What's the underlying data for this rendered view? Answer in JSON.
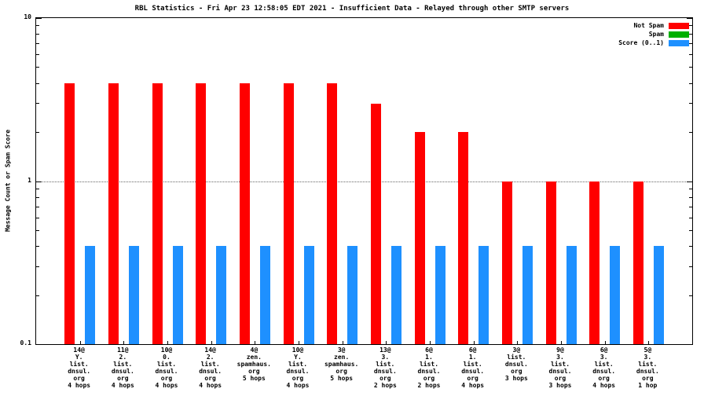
{
  "title": "RBL Statistics - Fri Apr 23 12:58:05 EDT 2021 - Insufficient Data - Relayed through other SMTP servers",
  "ylabel": "Message Count or Spam Score",
  "legend": [
    {
      "label": "Not Spam",
      "color": "#ff0000"
    },
    {
      "label": "Spam",
      "color": "#00b000"
    },
    {
      "label": "Score (0..1)",
      "color": "#1e90ff"
    }
  ],
  "chart_data": {
    "type": "bar",
    "scale": "log",
    "title": "RBL Statistics - Fri Apr 23 12:58:05 EDT 2021 - Insufficient Data - Relayed through other SMTP servers",
    "xlabel": "",
    "ylabel": "Message Count or Spam Score",
    "ylim": [
      0.1,
      10
    ],
    "yticks": [
      0.1,
      1,
      10
    ],
    "grid_y": [
      1
    ],
    "legend_position": "top-right",
    "categories": [
      [
        "14@",
        "Y.",
        "list.",
        "dnsul.",
        "org",
        "4 hops"
      ],
      [
        "11@",
        "2.",
        "list.",
        "dnsul.",
        "org",
        "4 hops"
      ],
      [
        "10@",
        "0.",
        "list.",
        "dnsul.",
        "org",
        "4 hops"
      ],
      [
        "14@",
        "2.",
        "list.",
        "dnsul.",
        "org",
        "4 hops"
      ],
      [
        "4@",
        "zen.",
        "spamhaus.",
        "org",
        "5 hops"
      ],
      [
        "10@",
        "Y.",
        "list.",
        "dnsul.",
        "org",
        "4 hops"
      ],
      [
        "3@",
        "zen.",
        "spamhaus.",
        "org",
        "5 hops"
      ],
      [
        "13@",
        "3.",
        "list.",
        "dnsul.",
        "org",
        "2 hops"
      ],
      [
        "6@",
        "1.",
        "list.",
        "dnsul.",
        "org",
        "2 hops"
      ],
      [
        "6@",
        "1.",
        "list.",
        "dnsul.",
        "org",
        "4 hops"
      ],
      [
        "3@",
        "list.",
        "dnsul.",
        "org",
        "3 hops"
      ],
      [
        "9@",
        "3.",
        "list.",
        "dnsul.",
        "org",
        "3 hops"
      ],
      [
        "6@",
        "3.",
        "list.",
        "dnsul.",
        "org",
        "4 hops"
      ],
      [
        "5@",
        "3.",
        "list.",
        "dnsul.",
        "org",
        "1 hop"
      ]
    ],
    "series": [
      {
        "name": "Not Spam",
        "color": "#ff0000",
        "values": [
          4,
          4,
          4,
          4,
          4,
          4,
          4,
          3,
          2,
          2,
          1,
          1,
          1,
          1
        ]
      },
      {
        "name": "Spam",
        "color": "#00b000",
        "values": [
          0,
          0,
          0,
          0,
          0,
          0,
          0,
          0,
          0,
          0,
          0,
          0,
          0,
          0
        ]
      },
      {
        "name": "Score (0..1)",
        "color": "#1e90ff",
        "values": [
          0.4,
          0.4,
          0.4,
          0.4,
          0.4,
          0.4,
          0.4,
          0.4,
          0.4,
          0.4,
          0.4,
          0.4,
          0.4,
          0.4
        ]
      }
    ]
  }
}
